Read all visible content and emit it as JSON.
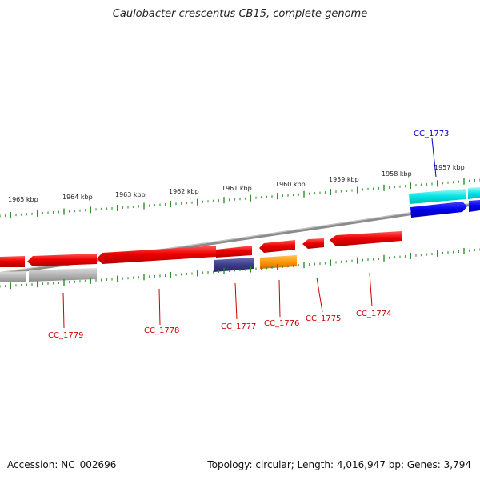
{
  "title": "Caulobacter crescentus CB15, complete genome",
  "footer": {
    "accession": "Accession: NC_002696",
    "summary": "Topology: circular; Length: 4,016,947 bp; Genes: 3,794"
  },
  "scale_labels": [
    "1957 kbp",
    "1958 kbp",
    "1959 kbp",
    "1960 kbp",
    "1961 kbp",
    "1962 kbp",
    "1963 kbp",
    "1964 kbp",
    "1965 kbp"
  ],
  "gene_labels": [
    {
      "name": "CC_1773",
      "color": "#0000cc"
    },
    {
      "name": "CC_1774",
      "color": "#cc0000"
    },
    {
      "name": "CC_1775",
      "color": "#cc0000"
    },
    {
      "name": "CC_1776",
      "color": "#cc0000"
    },
    {
      "name": "CC_1777",
      "color": "#cc0000"
    },
    {
      "name": "CC_1778",
      "color": "#cc0000"
    },
    {
      "name": "CC_1779",
      "color": "#cc0000"
    }
  ],
  "colors": {
    "backbone": "#8c8c8c",
    "tick": "#2e8b2e",
    "gene_red": "#ee0000",
    "gene_cyan": "#00e5e5",
    "gene_blue": "#0000ee",
    "gene_gray": "#b4b4b4",
    "gene_navy": "#3c3c8c",
    "gene_orange": "#ff9900"
  }
}
